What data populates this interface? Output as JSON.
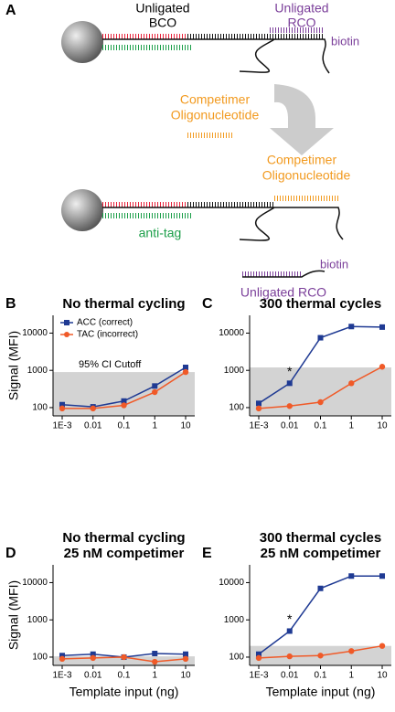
{
  "diagram": {
    "panel": "A",
    "bco": [
      "Unligated",
      "BCO"
    ],
    "rco": [
      "Unligated",
      "RCO"
    ],
    "biotin_top": "biotin",
    "competimer_free": [
      "Competimer",
      "Oligonucleotide"
    ],
    "competimer_bound": [
      "Competimer",
      "Oligonucleotide"
    ],
    "anti_tag": "anti-tag",
    "biotin_bottom": "biotin",
    "rco_free": "Unligated RCO"
  },
  "chart_data": [
    {
      "type": "line",
      "panel": "B",
      "title": [
        "No thermal cycling"
      ],
      "ylabel": "Signal (MFI)",
      "categories": [
        "1E-3",
        "0.01",
        "0.1",
        "1",
        "10"
      ],
      "ylog": true,
      "ylim": [
        60,
        30000
      ],
      "yticks": [
        100,
        1000,
        10000
      ],
      "cutoff": 900,
      "cutoff_color": "#d3d3d3",
      "cutoff_label": "95% CI Cutoff",
      "legend": "upper left",
      "series": [
        {
          "name": "ACC (correct)",
          "color": "#1f3a93",
          "marker": "square",
          "values": [
            120,
            105,
            150,
            380,
            1200
          ]
        },
        {
          "name": "TAC (incorrect)",
          "color": "#f05a28",
          "marker": "circle",
          "values": [
            95,
            95,
            115,
            260,
            900
          ]
        }
      ]
    },
    {
      "type": "line",
      "panel": "C",
      "title": [
        "300 thermal cycles"
      ],
      "categories": [
        "1E-3",
        "0.01",
        "0.1",
        "1",
        "10"
      ],
      "ylog": true,
      "ylim": [
        60,
        30000
      ],
      "yticks": [
        100,
        1000,
        10000
      ],
      "cutoff": 1200,
      "cutoff_color": "#d3d3d3",
      "annotations": [
        {
          "x": "0.01",
          "text": "*"
        }
      ],
      "series": [
        {
          "color": "#1f3a93",
          "marker": "square",
          "values": [
            130,
            450,
            7500,
            15000,
            14500
          ]
        },
        {
          "color": "#f05a28",
          "marker": "circle",
          "values": [
            95,
            110,
            140,
            450,
            1250
          ]
        }
      ]
    },
    {
      "type": "line",
      "panel": "D",
      "title": [
        "No thermal cycling",
        "25 nM competimer"
      ],
      "ylabel": "Signal (MFI)",
      "xlabel": "Template input (ng)",
      "categories": [
        "1E-3",
        "0.01",
        "0.1",
        "1",
        "10"
      ],
      "ylog": true,
      "ylim": [
        60,
        30000
      ],
      "yticks": [
        100,
        1000,
        10000
      ],
      "cutoff": 105,
      "cutoff_color": "#d3d3d3",
      "series": [
        {
          "color": "#1f3a93",
          "marker": "square",
          "values": [
            110,
            120,
            100,
            125,
            120
          ]
        },
        {
          "color": "#f05a28",
          "marker": "circle",
          "values": [
            90,
            95,
            100,
            75,
            90
          ]
        }
      ]
    },
    {
      "type": "line",
      "panel": "E",
      "title": [
        "300 thermal cycles",
        "25 nM competimer"
      ],
      "xlabel": "Template input (ng)",
      "categories": [
        "1E-3",
        "0.01",
        "0.1",
        "1",
        "10"
      ],
      "ylog": true,
      "ylim": [
        60,
        30000
      ],
      "yticks": [
        100,
        1000,
        10000
      ],
      "cutoff": 200,
      "cutoff_color": "#d3d3d3",
      "annotations": [
        {
          "x": "0.01",
          "text": "*"
        }
      ],
      "series": [
        {
          "color": "#1f3a93",
          "marker": "square",
          "values": [
            120,
            500,
            7000,
            15000,
            15000
          ]
        },
        {
          "color": "#f05a28",
          "marker": "circle",
          "values": [
            95,
            105,
            110,
            145,
            200
          ]
        }
      ]
    }
  ]
}
